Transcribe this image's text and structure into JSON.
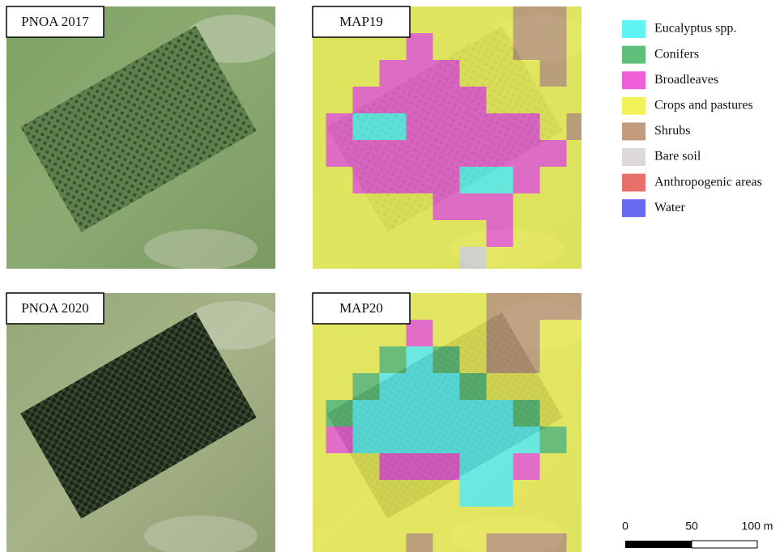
{
  "panels": [
    {
      "label": "PNOA 2017"
    },
    {
      "label": "MAP19"
    },
    {
      "label": "PNOA 2020"
    },
    {
      "label": "MAP20"
    }
  ],
  "legend": [
    {
      "label": "Eucalyptus spp.",
      "color": "#5ff5f5"
    },
    {
      "label": "Conifers",
      "color": "#5fbf7a"
    },
    {
      "label": "Broadleaves",
      "color": "#f05fd8"
    },
    {
      "label": "Crops and pastures",
      "color": "#f2f25a"
    },
    {
      "label": "Shrubs",
      "color": "#c29c7c"
    },
    {
      "label": "Bare soil",
      "color": "#dcd8dc"
    },
    {
      "label": "Anthropogenic areas",
      "color": "#e8706a"
    },
    {
      "label": "Water",
      "color": "#6a6af0"
    }
  ],
  "scale_bar": {
    "labels": [
      "0",
      "50",
      "100 m"
    ]
  }
}
